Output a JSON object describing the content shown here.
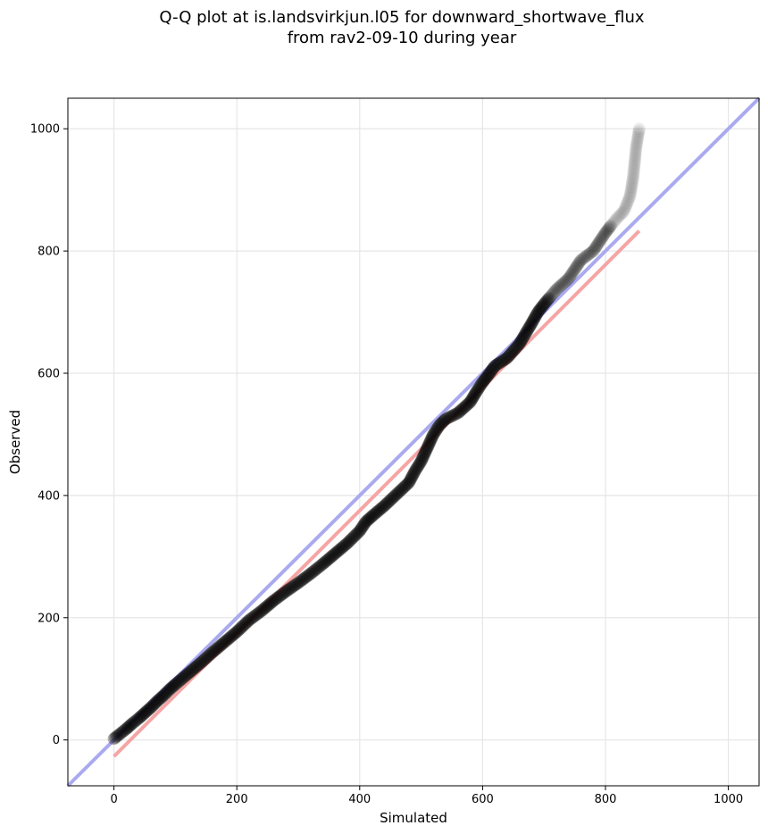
{
  "chart_data": {
    "type": "scatter",
    "title_line1": "Q-Q plot at is.landsvirkjun.l05 for downward_shortwave_flux",
    "title_line2": "from rav2-09-10 during year",
    "xlabel": "Simulated",
    "ylabel": "Observed",
    "xlim": [
      -75,
      1050
    ],
    "ylim": [
      -75,
      1050
    ],
    "xticks": [
      0,
      200,
      400,
      600,
      800,
      1000
    ],
    "yticks": [
      0,
      200,
      400,
      600,
      800,
      1000
    ],
    "grid": true,
    "colors": {
      "points": "#000000",
      "identity_line": "#aaaaf0",
      "fit_line": "#f5a5a5"
    },
    "identity_line": {
      "x": [
        -75,
        1050
      ],
      "y": [
        -75,
        1050
      ]
    },
    "fit_line": {
      "x": [
        0,
        855
      ],
      "y": [
        -27,
        833
      ]
    },
    "qq_points": {
      "x": [
        0,
        10,
        20,
        30,
        40,
        50,
        60,
        70,
        80,
        90,
        100,
        120,
        140,
        160,
        180,
        200,
        220,
        240,
        260,
        280,
        300,
        320,
        340,
        360,
        380,
        400,
        410,
        420,
        440,
        460,
        480,
        490,
        500,
        510,
        520,
        530,
        540,
        560,
        580,
        590,
        600,
        610,
        620,
        640,
        660,
        670,
        680,
        690,
        700,
        710,
        720,
        740,
        760,
        780,
        800,
        810,
        820,
        830,
        840,
        845,
        850,
        855
      ],
      "y": [
        2,
        10,
        18,
        27,
        35,
        44,
        53,
        63,
        72,
        82,
        91,
        108,
        125,
        143,
        160,
        177,
        196,
        211,
        228,
        243,
        257,
        272,
        288,
        305,
        322,
        342,
        357,
        366,
        383,
        402,
        421,
        440,
        456,
        478,
        500,
        515,
        525,
        535,
        553,
        570,
        585,
        598,
        612,
        625,
        648,
        665,
        682,
        700,
        713,
        725,
        737,
        755,
        785,
        800,
        830,
        843,
        855,
        865,
        890,
        920,
        970,
        1000
      ]
    }
  }
}
